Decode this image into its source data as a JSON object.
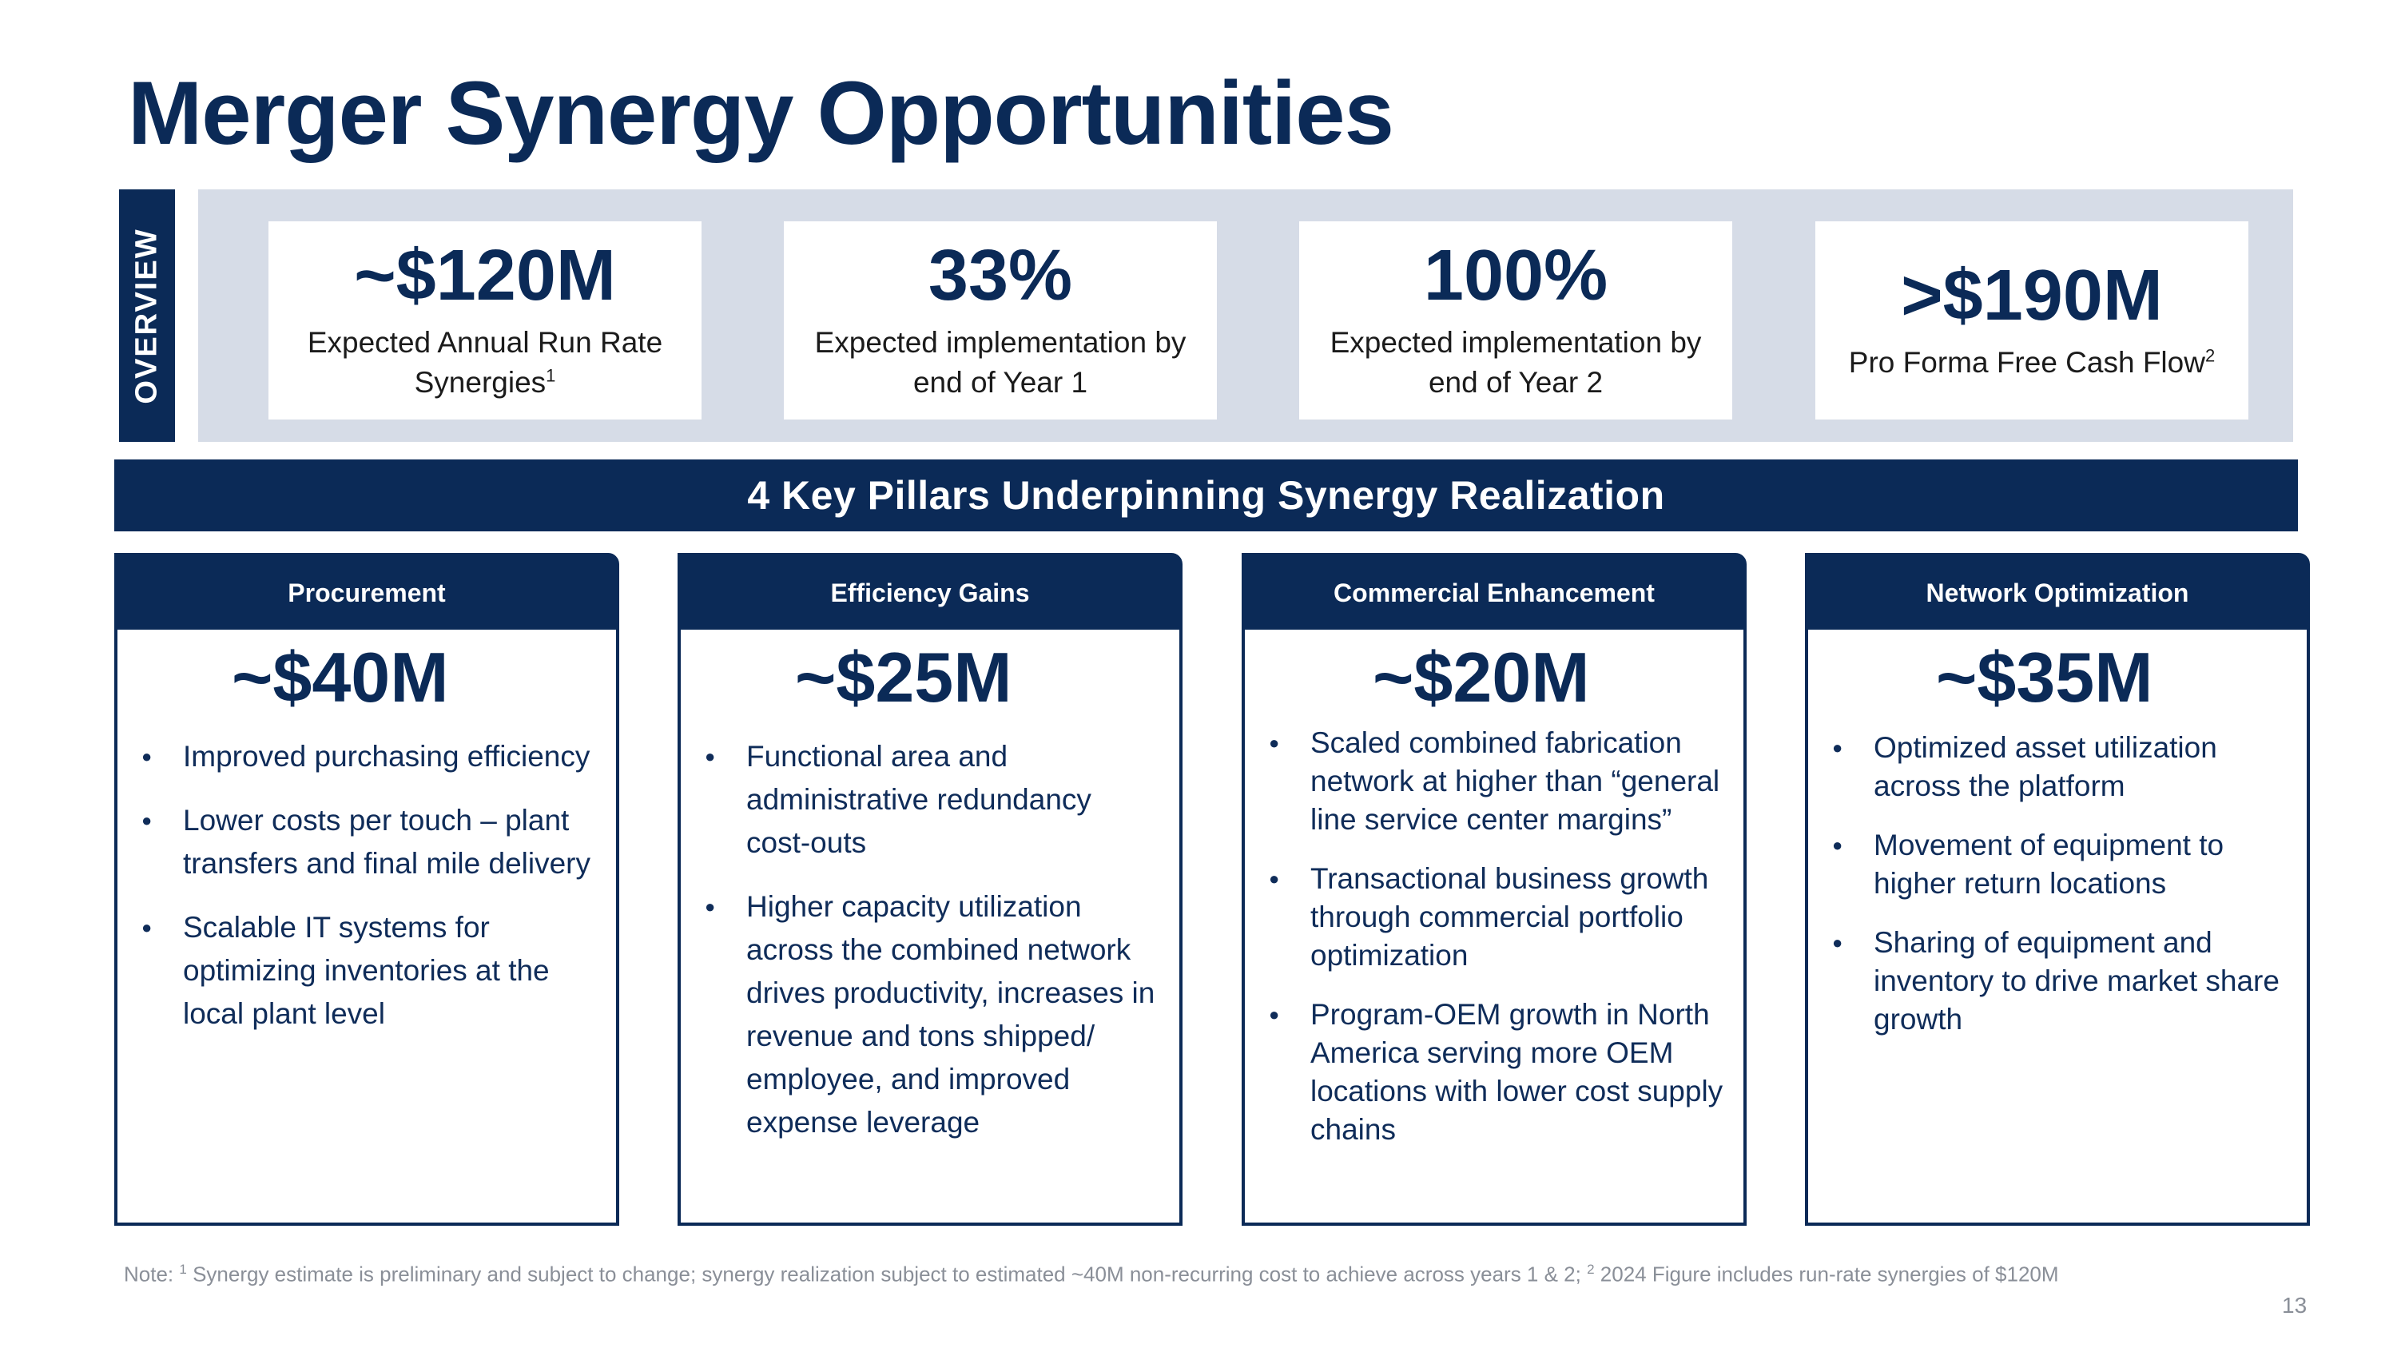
{
  "title": "Merger Synergy Opportunities",
  "overview": {
    "tab_label": "OVERVIEW",
    "metrics": [
      {
        "value": "~$120M",
        "label": "Expected Annual Run Rate Synergies",
        "sup": "1"
      },
      {
        "value": "33%",
        "label": "Expected implementation by end of Year 1",
        "sup": ""
      },
      {
        "value": "100%",
        "label": "Expected implementation by end of Year 2",
        "sup": ""
      },
      {
        "value": ">$190M",
        "label": "Pro Forma Free Cash Flow",
        "sup": "2"
      }
    ]
  },
  "banner": "4 Key Pillars Underpinning Synergy Realization",
  "pillars": [
    {
      "header": "Procurement",
      "value": "~$40M",
      "bullets": [
        "Improved purchasing efficiency",
        "Lower costs per touch – plant transfers and final mile delivery",
        "Scalable IT systems for optimizing inventories at the local plant level"
      ]
    },
    {
      "header": "Efficiency Gains",
      "value": "~$25M",
      "bullets": [
        "Functional area and administrative redundancy cost-outs",
        "Higher capacity utilization across the combined network drives productivity, increases in revenue and tons shipped/ employee, and improved expense leverage"
      ]
    },
    {
      "header": "Commercial Enhancement",
      "value": "~$20M",
      "bullets": [
        "Scaled combined fabrication network at higher than “general line service center margins”",
        "Transactional business growth through commercial portfolio optimization",
        "Program-OEM growth in North America serving more OEM locations with lower cost supply chains"
      ]
    },
    {
      "header": "Network Optimization",
      "value": "~$35M",
      "bullets": [
        "Optimized asset utilization across the platform",
        "Movement of equipment to higher return locations",
        "Sharing of equipment and inventory to drive market share growth"
      ]
    }
  ],
  "footnote": {
    "prefix": "Note: ",
    "sup1": "1",
    "text1": " Synergy estimate is preliminary and subject to change; synergy realization subject to estimated ~40M non-recurring cost to achieve across years 1 & 2; ",
    "sup2": "2",
    "text2": " 2024 Figure includes run-rate synergies of $120M"
  },
  "page_number": "13"
}
